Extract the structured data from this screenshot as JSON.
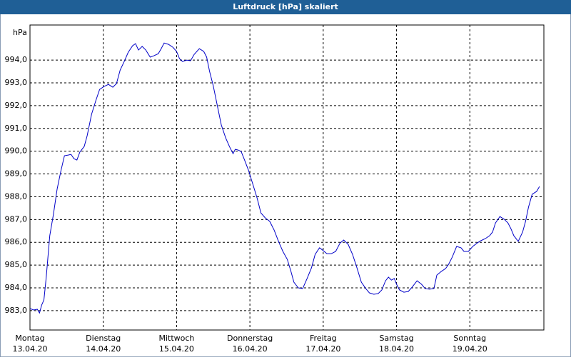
{
  "chart_data": {
    "type": "line",
    "title": "Luftdruck [hPa] skaliert",
    "y_unit": "hPa",
    "x": [
      0,
      0.05,
      0.1,
      0.13,
      0.16,
      0.19,
      0.22,
      0.27,
      0.32,
      0.37,
      0.42,
      0.47,
      0.52,
      0.56,
      0.6,
      0.64,
      0.68,
      0.74,
      0.78,
      0.84,
      0.9,
      0.95,
      1.01,
      1.07,
      1.13,
      1.18,
      1.23,
      1.29,
      1.34,
      1.4,
      1.44,
      1.48,
      1.53,
      1.58,
      1.64,
      1.69,
      1.75,
      1.79,
      1.83,
      1.89,
      1.95,
      2.0,
      2.04,
      2.08,
      2.14,
      2.19,
      2.24,
      2.31,
      2.37,
      2.41,
      2.45,
      2.5,
      2.56,
      2.61,
      2.67,
      2.72,
      2.77,
      2.8,
      2.84,
      2.88,
      2.92,
      2.98,
      3.04,
      3.1,
      3.15,
      3.21,
      3.27,
      3.33,
      3.39,
      3.45,
      3.51,
      3.56,
      3.6,
      3.66,
      3.72,
      3.78,
      3.84,
      3.89,
      3.95,
      3.99,
      4.05,
      4.11,
      4.17,
      4.23,
      4.28,
      4.34,
      4.4,
      4.46,
      4.52,
      4.58,
      4.63,
      4.69,
      4.75,
      4.8,
      4.85,
      4.89,
      4.93,
      4.97,
      5.0,
      5.04,
      5.1,
      5.16,
      5.22,
      5.28,
      5.34,
      5.39,
      5.45,
      5.51,
      5.55,
      5.61,
      5.67,
      5.71,
      5.76,
      5.82,
      5.88,
      5.92,
      5.98,
      6.04,
      6.1,
      6.15,
      6.21,
      6.27,
      6.31,
      6.35,
      6.41,
      6.47,
      6.52,
      6.56,
      6.6,
      6.66,
      6.72,
      6.76,
      6.8,
      6.85,
      6.91,
      6.95
    ],
    "series": [
      {
        "name": "Luftdruck",
        "color": "#0000c8",
        "values": [
          983.09,
          983.03,
          983.06,
          982.9,
          983.25,
          983.47,
          984.41,
          986.29,
          987.23,
          988.33,
          989.11,
          989.8,
          989.83,
          989.86,
          989.67,
          989.61,
          989.96,
          990.21,
          990.68,
          991.62,
          992.24,
          992.71,
          992.84,
          992.93,
          992.81,
          992.97,
          993.56,
          993.97,
          994.34,
          994.63,
          994.72,
          994.44,
          994.6,
          994.44,
          994.13,
          994.19,
          994.28,
          994.5,
          994.75,
          994.69,
          994.56,
          994.38,
          994.06,
          993.94,
          994.0,
          993.97,
          994.25,
          994.5,
          994.38,
          994.13,
          993.5,
          992.87,
          991.93,
          991.15,
          990.58,
          990.21,
          989.89,
          990.08,
          990.05,
          989.99,
          989.67,
          989.17,
          988.55,
          987.92,
          987.29,
          987.07,
          986.92,
          986.54,
          986.04,
          985.6,
          985.25,
          984.72,
          984.25,
          984.0,
          983.97,
          984.41,
          984.88,
          985.47,
          985.76,
          985.66,
          985.5,
          985.5,
          985.6,
          985.97,
          986.1,
          985.91,
          985.47,
          984.88,
          984.25,
          983.97,
          983.78,
          983.72,
          983.75,
          983.91,
          984.31,
          984.47,
          984.34,
          984.41,
          984.16,
          983.91,
          983.81,
          983.84,
          984.06,
          984.31,
          984.16,
          983.97,
          983.94,
          983.97,
          984.56,
          984.72,
          984.85,
          985.03,
          985.35,
          985.82,
          985.76,
          985.6,
          985.6,
          985.82,
          985.97,
          986.07,
          986.16,
          986.29,
          986.45,
          986.85,
          987.13,
          987.01,
          986.85,
          986.6,
          986.29,
          986.04,
          986.45,
          986.92,
          987.54,
          988.11,
          988.23,
          988.45
        ]
      }
    ],
    "xlim": [
      0,
      7.01
    ],
    "ylim": [
      982.15,
      995.54
    ],
    "xticks": [
      0,
      1,
      2,
      3,
      4,
      5,
      6
    ],
    "xtick_days": [
      "Montag",
      "Dienstag",
      "Mittwoch",
      "Donnerstag",
      "Freitag",
      "Samstag",
      "Sonntag"
    ],
    "xtick_dates": [
      "13.04.20",
      "14.04.20",
      "15.04.20",
      "16.04.20",
      "17.04.20",
      "18.04.20",
      "19.04.20"
    ],
    "yticks": [
      {
        "value": 983,
        "label": "983,0"
      },
      {
        "value": 984,
        "label": "984,0"
      },
      {
        "value": 985,
        "label": "985,0"
      },
      {
        "value": 986,
        "label": "986,0"
      },
      {
        "value": 987,
        "label": "987,0"
      },
      {
        "value": 988,
        "label": "988,0"
      },
      {
        "value": 989,
        "label": "989,0"
      },
      {
        "value": 990,
        "label": "990,0"
      },
      {
        "value": 991,
        "label": "991,0"
      },
      {
        "value": 992,
        "label": "992,0"
      },
      {
        "value": 993,
        "label": "993,0"
      },
      {
        "value": 994,
        "label": "994,0"
      }
    ],
    "grid": true
  }
}
